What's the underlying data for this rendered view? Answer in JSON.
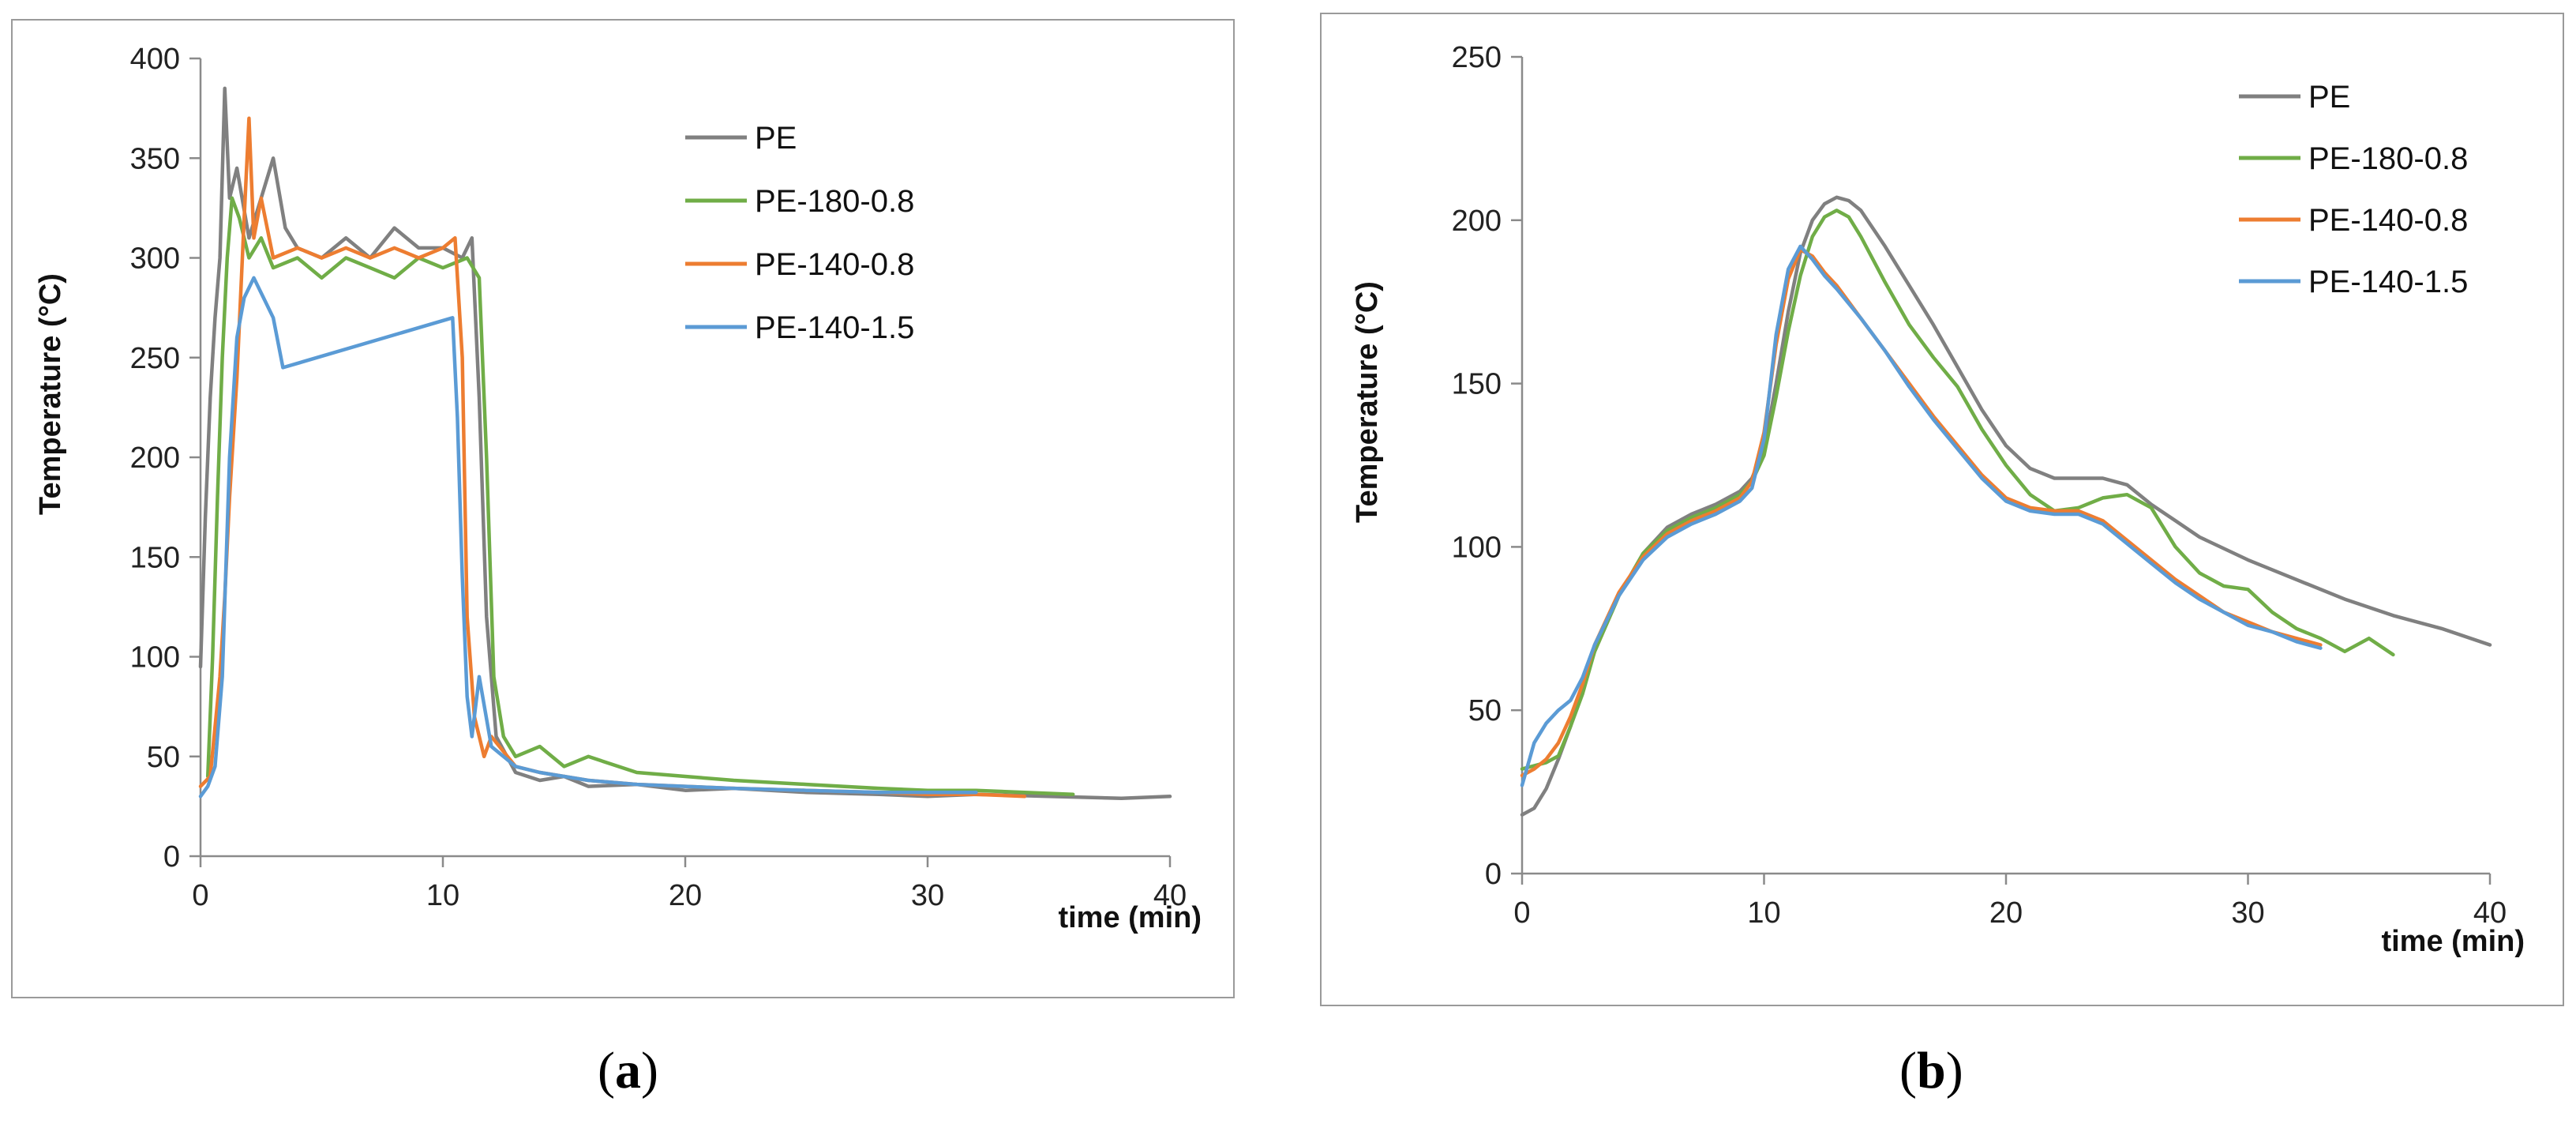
{
  "chart_data": [
    {
      "type": "line",
      "panel": "a",
      "xlabel": "time (min)",
      "ylabel": "Temperature (°C)",
      "xlim": [
        0,
        40
      ],
      "ylim": [
        0,
        400
      ],
      "xticks": [
        0,
        10,
        20,
        30,
        40
      ],
      "yticks": [
        0,
        50,
        100,
        150,
        200,
        250,
        300,
        350,
        400
      ],
      "legend_position": "top-right",
      "series": [
        {
          "name": "PE",
          "color": "#808080",
          "x": [
            0,
            0.2,
            0.4,
            0.6,
            0.8,
            1.0,
            1.2,
            1.5,
            2.0,
            2.5,
            3.0,
            3.5,
            4,
            5,
            6,
            7,
            8,
            9,
            10,
            10.8,
            11.2,
            11.5,
            11.8,
            12.2,
            13,
            14,
            15,
            16,
            18,
            20,
            22,
            25,
            28,
            30,
            32,
            35,
            38,
            40
          ],
          "y": [
            95,
            170,
            230,
            270,
            300,
            385,
            330,
            345,
            310,
            330,
            350,
            315,
            305,
            300,
            310,
            300,
            315,
            305,
            305,
            300,
            310,
            230,
            120,
            60,
            42,
            38,
            40,
            35,
            36,
            33,
            34,
            32,
            31,
            30,
            31,
            30,
            29,
            30
          ]
        },
        {
          "name": "PE-180-0.8",
          "color": "#70ad47",
          "x": [
            0.3,
            0.5,
            0.7,
            0.9,
            1.1,
            1.3,
            1.6,
            2.0,
            2.5,
            3,
            4,
            5,
            6,
            7,
            8,
            9,
            10,
            11,
            11.5,
            11.8,
            12.1,
            12.5,
            13,
            14,
            15,
            16,
            18,
            20,
            22,
            25,
            28,
            30,
            32,
            34,
            36
          ],
          "y": [
            40,
            100,
            180,
            250,
            300,
            330,
            320,
            300,
            310,
            295,
            300,
            290,
            300,
            295,
            290,
            300,
            295,
            300,
            290,
            200,
            90,
            60,
            50,
            55,
            45,
            50,
            42,
            40,
            38,
            36,
            34,
            33,
            33,
            32,
            31
          ]
        },
        {
          "name": "PE-140-0.8",
          "color": "#ed7d31",
          "x": [
            0,
            0.4,
            0.8,
            1.0,
            1.2,
            1.5,
            1.8,
            2.0,
            2.2,
            2.5,
            3,
            4,
            5,
            6,
            7,
            8,
            9,
            10,
            10.5,
            10.8,
            11.0,
            11.3,
            11.7,
            12,
            13,
            14,
            15,
            16,
            18,
            20,
            22,
            25,
            28,
            30,
            32,
            34
          ],
          "y": [
            35,
            40,
            90,
            130,
            180,
            240,
            320,
            370,
            310,
            330,
            300,
            305,
            300,
            305,
            300,
            305,
            300,
            305,
            310,
            250,
            120,
            70,
            50,
            60,
            45,
            42,
            40,
            38,
            36,
            35,
            34,
            33,
            32,
            31,
            31,
            30
          ]
        },
        {
          "name": "PE-140-1.5",
          "color": "#5b9bd5",
          "x": [
            0,
            0.3,
            0.6,
            0.9,
            1.2,
            1.5,
            1.8,
            2.2,
            2.6,
            3.0,
            3.4,
            10.4,
            10.6,
            10.8,
            11.0,
            11.2,
            11.5,
            12,
            13,
            14,
            15,
            16,
            18,
            20,
            22,
            25,
            28,
            30,
            32
          ],
          "y": [
            30,
            35,
            45,
            90,
            200,
            260,
            280,
            290,
            280,
            270,
            245,
            270,
            220,
            140,
            80,
            60,
            90,
            55,
            45,
            42,
            40,
            38,
            36,
            35,
            34,
            33,
            32,
            32,
            32
          ]
        }
      ]
    },
    {
      "type": "line",
      "panel": "b",
      "xlabel": "time (min)",
      "ylabel": "Temperature (°C)",
      "xlim": [
        0,
        40
      ],
      "ylim": [
        0,
        250
      ],
      "xticks": [
        0,
        10,
        20,
        30,
        40
      ],
      "yticks": [
        0,
        50,
        100,
        150,
        200,
        250
      ],
      "legend_position": "top-right",
      "series": [
        {
          "name": "PE",
          "color": "#808080",
          "x": [
            0,
            0.5,
            1,
            1.5,
            2,
            2.5,
            3,
            4,
            5,
            6,
            7,
            8,
            9,
            9.5,
            10,
            10.5,
            11,
            11.5,
            12,
            12.5,
            13,
            13.5,
            14,
            15,
            16,
            17,
            18,
            19,
            20,
            21,
            22,
            23,
            24,
            25,
            26,
            27,
            28,
            30,
            32,
            34,
            36,
            38,
            40
          ],
          "y": [
            18,
            20,
            26,
            35,
            45,
            57,
            68,
            85,
            98,
            106,
            110,
            113,
            117,
            121,
            130,
            150,
            172,
            190,
            200,
            205,
            207,
            206,
            203,
            192,
            180,
            168,
            155,
            142,
            131,
            124,
            121,
            121,
            121,
            119,
            113,
            108,
            103,
            96,
            90,
            84,
            79,
            75,
            70
          ]
        },
        {
          "name": "PE-180-0.8",
          "color": "#70ad47",
          "x": [
            0,
            0.5,
            1,
            1.5,
            2,
            2.5,
            3,
            4,
            5,
            6,
            7,
            8,
            9,
            9.5,
            10,
            10.5,
            11,
            11.5,
            12,
            12.5,
            13,
            13.5,
            14,
            15,
            16,
            17,
            18,
            19,
            20,
            21,
            22,
            23,
            24,
            25,
            26,
            27,
            28,
            29,
            30,
            31,
            32,
            33,
            34,
            35,
            36
          ],
          "y": [
            32,
            33,
            34,
            36,
            45,
            55,
            68,
            85,
            98,
            105,
            109,
            112,
            116,
            120,
            128,
            146,
            166,
            183,
            195,
            201,
            203,
            201,
            195,
            181,
            168,
            158,
            149,
            136,
            125,
            116,
            111,
            112,
            115,
            116,
            112,
            100,
            92,
            88,
            87,
            80,
            75,
            72,
            68,
            72,
            67
          ]
        },
        {
          "name": "PE-140-0.8",
          "color": "#ed7d31",
          "x": [
            0,
            0.5,
            1,
            1.5,
            2,
            2.5,
            3,
            4,
            5,
            6,
            7,
            8,
            9,
            9.5,
            10,
            10.5,
            11,
            11.5,
            12,
            12.5,
            13,
            14,
            15,
            16,
            17,
            18,
            19,
            20,
            21,
            22,
            23,
            24,
            25,
            26,
            27,
            28,
            29,
            30,
            31,
            32,
            33
          ],
          "y": [
            30,
            32,
            35,
            40,
            48,
            58,
            70,
            86,
            97,
            104,
            108,
            111,
            115,
            120,
            135,
            162,
            182,
            191,
            189,
            184,
            180,
            170,
            160,
            150,
            140,
            131,
            122,
            115,
            112,
            111,
            111,
            108,
            102,
            96,
            90,
            85,
            80,
            77,
            74,
            72,
            70
          ]
        },
        {
          "name": "PE-140-1.5",
          "color": "#5b9bd5",
          "x": [
            0,
            0.5,
            1,
            1.5,
            2,
            2.5,
            3,
            4,
            5,
            6,
            7,
            8,
            9,
            9.5,
            10,
            10.5,
            11,
            11.5,
            12,
            12.5,
            13,
            14,
            15,
            16,
            17,
            18,
            19,
            20,
            21,
            22,
            23,
            24,
            25,
            26,
            27,
            28,
            29,
            30,
            31,
            32,
            33
          ],
          "y": [
            27,
            40,
            46,
            50,
            53,
            60,
            70,
            85,
            96,
            103,
            107,
            110,
            114,
            118,
            133,
            165,
            185,
            192,
            188,
            183,
            179,
            170,
            160,
            149,
            139,
            130,
            121,
            114,
            111,
            110,
            110,
            107,
            101,
            95,
            89,
            84,
            80,
            76,
            74,
            71,
            69
          ]
        }
      ]
    }
  ],
  "captions": {
    "a": "a",
    "b": "b"
  }
}
